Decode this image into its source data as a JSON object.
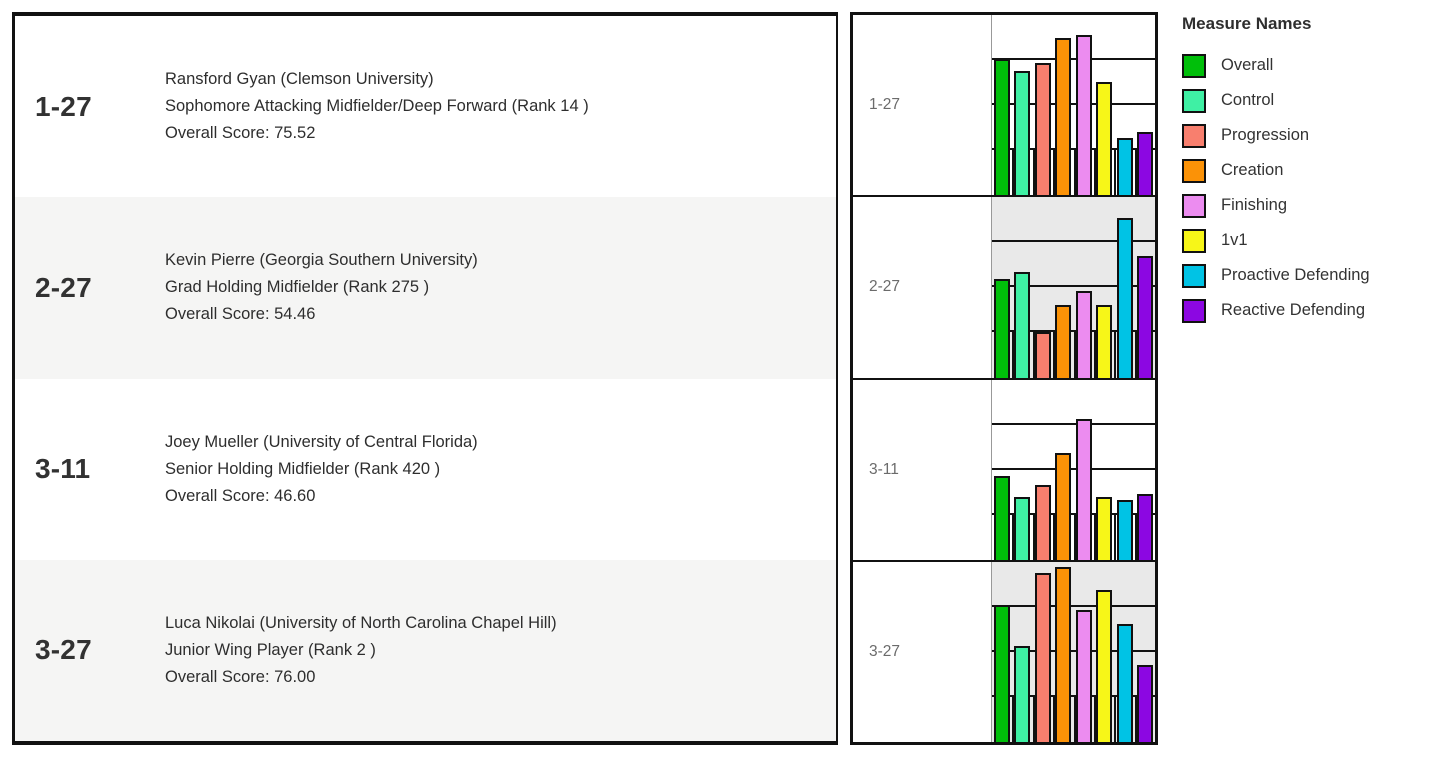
{
  "table": {
    "rows": [
      {
        "id": "1-27",
        "name": "Ransford Gyan (Clemson University)",
        "role": "Sophomore Attacking Midfielder/Deep Forward  (Rank 14 )",
        "score": "Overall Score: 75.52"
      },
      {
        "id": "2-27",
        "name": "Kevin Pierre (Georgia Southern University)",
        "role": "Grad Holding Midfielder  (Rank 275 )",
        "score": "Overall Score: 54.46"
      },
      {
        "id": "3-11",
        "name": "Joey Mueller (University of Central Florida)",
        "role": "Senior Holding Midfielder  (Rank 420 )",
        "score": "Overall Score: 46.60"
      },
      {
        "id": "3-27",
        "name": "Luca Nikolai (University of North Carolina Chapel Hill)",
        "role": "Junior Wing Player  (Rank 2 )",
        "score": "Overall Score: 76.00"
      }
    ]
  },
  "legend": {
    "title": "Measure Names",
    "items": [
      {
        "label": "Overall",
        "color": "#00bf0a"
      },
      {
        "label": "Control",
        "color": "#3ff0a4"
      },
      {
        "label": "Progression",
        "color": "#f87f6e"
      },
      {
        "label": "Creation",
        "color": "#fb9207"
      },
      {
        "label": "Finishing",
        "color": "#ec8cf0"
      },
      {
        "label": "1v1",
        "color": "#f7f618"
      },
      {
        "label": "Proactive Defending",
        "color": "#00c3e5"
      },
      {
        "label": "Reactive Defending",
        "color": "#8c07e2"
      }
    ]
  },
  "chart_data": {
    "type": "bar",
    "title": "Player measure profiles by player id",
    "categories": [
      "Overall",
      "Control",
      "Progression",
      "Creation",
      "Finishing",
      "1v1",
      "Proactive Defending",
      "Reactive Defending"
    ],
    "ylim": [
      0,
      100
    ],
    "gridlines": [
      25,
      50,
      75
    ],
    "legend_position": "right",
    "rows": [
      {
        "label": "1-27",
        "banded": false,
        "values": [
          75.52,
          69.0,
          73.5,
          87.0,
          89.0,
          63.0,
          31.5,
          35.0
        ]
      },
      {
        "label": "2-27",
        "banded": true,
        "values": [
          54.46,
          58.5,
          25.5,
          40.0,
          48.0,
          40.5,
          88.5,
          67.5
        ]
      },
      {
        "label": "3-11",
        "banded": false,
        "values": [
          46.6,
          35.0,
          41.5,
          59.0,
          78.0,
          35.0,
          33.0,
          36.5
        ]
      },
      {
        "label": "3-27",
        "banded": true,
        "values": [
          76.0,
          53.5,
          94.0,
          97.0,
          73.5,
          84.5,
          65.5,
          42.5
        ]
      }
    ]
  }
}
